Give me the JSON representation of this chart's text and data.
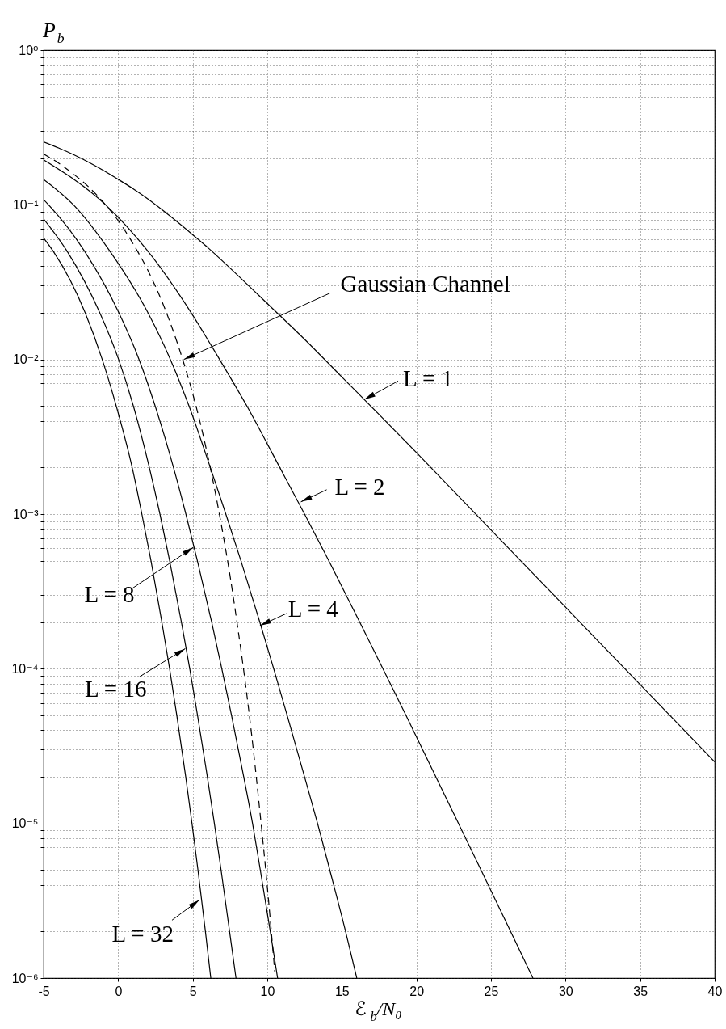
{
  "chart_data": {
    "type": "line",
    "xlabel": "ℰ$_{b}$/N₀",
    "ylabel": "P$_{b}$",
    "xlim": [
      -5,
      40
    ],
    "ylim": [
      1e-06,
      1
    ],
    "log": "y",
    "grid": true,
    "line_style": "solid",
    "xticks": [
      -5,
      0,
      5,
      10,
      15,
      20,
      25,
      30,
      35,
      40
    ],
    "yticks": [
      {
        "value": 1e-06,
        "label": "10⁻⁶"
      },
      {
        "value": 2e-06,
        "label": null
      },
      {
        "value": 3e-06,
        "label": null
      },
      {
        "value": 4e-06,
        "label": null
      },
      {
        "value": 5e-06,
        "label": null
      },
      {
        "value": 6e-06,
        "label": null
      },
      {
        "value": 7e-06,
        "label": null
      },
      {
        "value": 8e-06,
        "label": null
      },
      {
        "value": 9e-06,
        "label": null
      },
      {
        "value": 1e-05,
        "label": "10⁻⁵"
      },
      {
        "value": 2e-05,
        "label": null
      },
      {
        "value": 3e-05,
        "label": null
      },
      {
        "value": 4e-05,
        "label": null
      },
      {
        "value": 5e-05,
        "label": null
      },
      {
        "value": 6e-05,
        "label": null
      },
      {
        "value": 7e-05,
        "label": null
      },
      {
        "value": 8e-05,
        "label": null
      },
      {
        "value": 9e-05,
        "label": null
      },
      {
        "value": 0.0001,
        "label": "10⁻⁴"
      },
      {
        "value": 0.0002,
        "label": null
      },
      {
        "value": 0.0003,
        "label": null
      },
      {
        "value": 0.0004,
        "label": null
      },
      {
        "value": 0.0005,
        "label": null
      },
      {
        "value": 0.0006,
        "label": null
      },
      {
        "value": 0.0007,
        "label": null
      },
      {
        "value": 0.0008,
        "label": null
      },
      {
        "value": 0.0009,
        "label": null
      },
      {
        "value": 0.001,
        "label": "10⁻³"
      },
      {
        "value": 0.002,
        "label": null
      },
      {
        "value": 0.003,
        "label": null
      },
      {
        "value": 0.004,
        "label": null
      },
      {
        "value": 0.005,
        "label": null
      },
      {
        "value": 0.006,
        "label": null
      },
      {
        "value": 0.007,
        "label": null
      },
      {
        "value": 0.008,
        "label": null
      },
      {
        "value": 0.009,
        "label": null
      },
      {
        "value": 0.01,
        "label": "10⁻²"
      },
      {
        "value": 0.02,
        "label": null
      },
      {
        "value": 0.03,
        "label": null
      },
      {
        "value": 0.04,
        "label": null
      },
      {
        "value": 0.05,
        "label": null
      },
      {
        "value": 0.06,
        "label": null
      },
      {
        "value": 0.07,
        "label": null
      },
      {
        "value": 0.08,
        "label": null
      },
      {
        "value": 0.09,
        "label": null
      },
      {
        "value": 0.1,
        "label": "10⁻¹"
      },
      {
        "value": 0.2,
        "label": null
      },
      {
        "value": 0.3,
        "label": null
      },
      {
        "value": 0.4,
        "label": null
      },
      {
        "value": 0.5,
        "label": null
      },
      {
        "value": 0.6,
        "label": null
      },
      {
        "value": 0.7,
        "label": null
      },
      {
        "value": 0.8,
        "label": null
      },
      {
        "value": 0.9,
        "label": null
      },
      {
        "value": 1,
        "label": "10⁰"
      }
    ],
    "series": [
      {
        "color": "#000000",
        "x": [
          -5,
          -4,
          -3,
          -2,
          -1,
          0,
          1,
          2,
          3,
          4,
          5,
          6,
          7.5,
          10,
          12.5,
          15,
          17.5,
          20,
          25,
          30,
          35,
          40
        ],
        "values": [
          0.255,
          0.233,
          0.211,
          0.189,
          0.167,
          0.146,
          0.127,
          0.109,
          0.092,
          0.077,
          0.064,
          0.053,
          0.039,
          0.023,
          0.0135,
          0.0077,
          0.0044,
          0.0025,
          0.00079,
          0.00025,
          7.9e-05,
          2.5e-05
        ]
      },
      {
        "color": "#000000",
        "x": [
          -5,
          -0.85,
          2.0,
          4.9,
          6.8,
          8.63,
          10.84,
          12.5,
          14.12,
          16.2,
          17.75,
          19.3,
          21.3,
          22.82,
          24.33,
          26.32,
          27.81
        ],
        "values": [
          0.195,
          0.1,
          0.05,
          0.02,
          0.01,
          0.005,
          0.002,
          0.001,
          0.0005,
          0.0002,
          0.0001,
          5e-05,
          2e-05,
          1e-05,
          5e-06,
          2e-06,
          1e-06
        ]
      },
      {
        "color": "#000000",
        "x": [
          -5,
          -3.0,
          -0.55,
          2.0,
          3.5,
          4.75,
          6.18,
          7.22,
          8.23,
          9.5,
          10.43,
          11.33,
          12.5,
          13.37,
          14.19,
          15.25,
          16.0
        ],
        "values": [
          0.146,
          0.1,
          0.05,
          0.02,
          0.01,
          0.005,
          0.002,
          0.001,
          0.0005,
          0.0002,
          0.0001,
          5e-05,
          2e-05,
          1e-05,
          5e-06,
          2e-06,
          1e-06
        ]
      },
      {
        "color": "#000000",
        "x": [
          -5,
          -4.67,
          -2.25,
          0.05,
          1.4,
          2.48,
          3.71,
          4.54,
          5.31,
          6.27,
          6.95,
          7.6,
          8.42,
          9.01,
          9.53,
          10.2,
          10.69
        ],
        "values": [
          0.108,
          0.1,
          0.05,
          0.02,
          0.01,
          0.005,
          0.002,
          0.001,
          0.0005,
          0.0002,
          0.0001,
          5e-05,
          2e-05,
          1e-05,
          5e-06,
          2e-06,
          1e-06
        ]
      },
      {
        "color": "#000000",
        "x": [
          -5,
          -3.42,
          -1.23,
          0.03,
          1.02,
          2.09,
          2.8,
          3.45,
          4.24,
          4.8,
          5.32,
          5.98,
          6.45,
          6.9,
          7.47,
          7.9
        ],
        "values": [
          0.081,
          0.05,
          0.02,
          0.01,
          0.005,
          0.002,
          0.001,
          0.0005,
          0.0002,
          0.0001,
          5e-05,
          2e-05,
          1e-05,
          5e-06,
          2e-06,
          1e-06
        ]
      },
      {
        "color": "#000000",
        "x": [
          -5,
          -4.35,
          -2.21,
          -1.07,
          -0.13,
          0.94,
          1.59,
          2.2,
          2.93,
          3.45,
          3.93,
          4.53,
          4.95,
          5.35,
          5.85,
          6.21
        ],
        "values": [
          0.061,
          0.05,
          0.02,
          0.01,
          0.005,
          0.002,
          0.001,
          0.0005,
          0.0002,
          0.0001,
          5e-05,
          2e-05,
          1e-05,
          5e-06,
          2e-06,
          1e-06
        ]
      },
      {
        "color": "#000000",
        "line_style": "dashed",
        "x": [
          -5,
          -4,
          -3,
          -2,
          -1,
          0,
          1,
          2,
          3,
          4,
          5,
          5.5,
          6,
          6.5,
          7,
          7.5,
          8,
          8.5,
          9,
          9.5,
          10,
          10.25,
          10.5
        ],
        "values": [
          0.213,
          0.186,
          0.158,
          0.131,
          0.104,
          0.079,
          0.056,
          0.0375,
          0.0229,
          0.0125,
          0.006,
          0.0039,
          0.0024,
          0.0014,
          0.00077,
          0.0004,
          0.00019,
          8.5e-05,
          3.4e-05,
          1.2e-05,
          3.9e-06,
          2.1e-06,
          1.1e-06
        ]
      }
    ],
    "annotations": [
      {
        "text": "Gaussian Channel",
        "x": 4.4,
        "y": 0.01
      },
      {
        "text": "L = 1",
        "x": 16.5,
        "y": 0.0055
      },
      {
        "text": "L = 2",
        "x": 12.25,
        "y": 0.0012
      },
      {
        "text": "L = 8",
        "x": 5.05,
        "y": 0.00061
      },
      {
        "text": "L = 4",
        "x": 9.5,
        "y": 0.00019
      },
      {
        "text": "L = 16",
        "x": 4.5,
        "y": 0.000135
      },
      {
        "text": "L = 32",
        "x": 5.45,
        "y": 3.2e-06
      }
    ]
  }
}
